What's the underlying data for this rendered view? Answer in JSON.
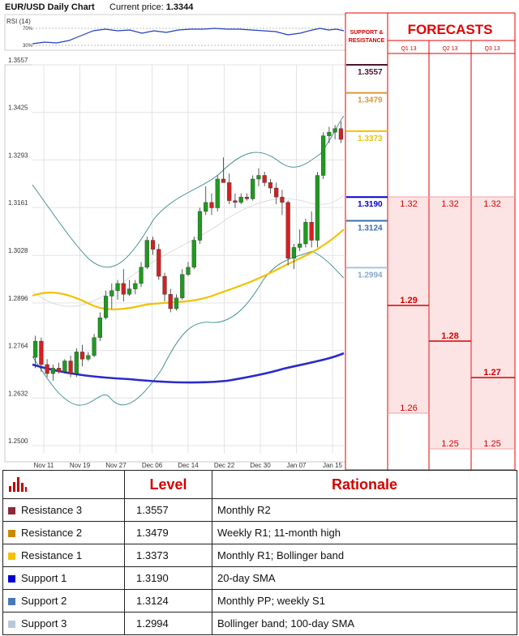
{
  "header": {
    "chart_title": "EUR/USD Daily Chart",
    "price_label": "Current price:",
    "price_value": "1.3344"
  },
  "rsi": {
    "label": "RSI (14)",
    "tick_70": "70%",
    "tick_30": "30%"
  },
  "panel": {
    "sr_title_line1": "SUPPORT &",
    "sr_title_line2": "RESISTANCE",
    "forecast_title": "FORECASTS",
    "quarters": [
      "Q1 13",
      "Q2 13",
      "Q3 13"
    ]
  },
  "levels": [
    {
      "value": "1.3557",
      "color": "#4a1530"
    },
    {
      "value": "1.3479",
      "color": "#d99a3a"
    },
    {
      "value": "1.3373",
      "color": "#f2c200"
    },
    {
      "value": "1.3190",
      "color": "#0000cc"
    },
    {
      "value": "1.3124",
      "color": "#3b6fae"
    },
    {
      "value": "1.2994",
      "color": "#a9c4de"
    }
  ],
  "forecasts": [
    {
      "quarter": "Q1 13",
      "high": "1.32",
      "mid": "1.29",
      "low": "1.26"
    },
    {
      "quarter": "Q2 13",
      "high": "1.32",
      "mid": "1.28",
      "low": "1.25"
    },
    {
      "quarter": "Q3 13",
      "high": "1.32",
      "mid": "1.27",
      "low": "1.25"
    }
  ],
  "table": {
    "header_level": "Level",
    "header_rationale": "Rationale",
    "rows": [
      {
        "name": "Resistance 3",
        "level": "1.3557",
        "rationale": "Monthly R2",
        "color": "#8b2a3a"
      },
      {
        "name": "Resistance 2",
        "level": "1.3479",
        "rationale": "Weekly R1; 11-month high",
        "color": "#c98a00"
      },
      {
        "name": "Resistance 1",
        "level": "1.3373",
        "rationale": "Monthly R1; Bollinger band",
        "color": "#f2c200"
      },
      {
        "name": "Support 1",
        "level": "1.3190",
        "rationale": "20-day SMA",
        "color": "#0000cc"
      },
      {
        "name": "Support 2",
        "level": "1.3124",
        "rationale": "Monthly PP; weekly S1",
        "color": "#4a78b4"
      },
      {
        "name": "Support 3",
        "level": "1.2994",
        "rationale": "Bollinger band; 100-day SMA",
        "color": "#b8c9dc"
      }
    ]
  },
  "chart_data": {
    "type": "candlestick",
    "y_ticks": [
      "1.3557",
      "1.3425",
      "1.3293",
      "1.3161",
      "1.3028",
      "1.2896",
      "1.2764",
      "1.2632",
      "1.2500"
    ],
    "ylim": [
      1.25,
      1.3557
    ],
    "x_ticks": [
      "Nov 11",
      "Nov 19",
      "Nov 27",
      "Dec 06",
      "Dec 14",
      "Dec 22",
      "Dec 30",
      "Jan 07",
      "Jan 15"
    ],
    "grid": true,
    "candles": [
      {
        "o": 1.2745,
        "h": 1.2805,
        "l": 1.2715,
        "c": 1.279
      },
      {
        "o": 1.279,
        "h": 1.28,
        "l": 1.2705,
        "c": 1.2725
      },
      {
        "o": 1.2725,
        "h": 1.274,
        "l": 1.269,
        "c": 1.27
      },
      {
        "o": 1.27,
        "h": 1.2725,
        "l": 1.268,
        "c": 1.2715
      },
      {
        "o": 1.2715,
        "h": 1.273,
        "l": 1.27,
        "c": 1.2705
      },
      {
        "o": 1.2705,
        "h": 1.274,
        "l": 1.27,
        "c": 1.2735
      },
      {
        "o": 1.2735,
        "h": 1.275,
        "l": 1.269,
        "c": 1.27
      },
      {
        "o": 1.27,
        "h": 1.277,
        "l": 1.269,
        "c": 1.276
      },
      {
        "o": 1.276,
        "h": 1.278,
        "l": 1.272,
        "c": 1.274
      },
      {
        "o": 1.274,
        "h": 1.276,
        "l": 1.2735,
        "c": 1.275
      },
      {
        "o": 1.275,
        "h": 1.281,
        "l": 1.2745,
        "c": 1.28
      },
      {
        "o": 1.28,
        "h": 1.287,
        "l": 1.279,
        "c": 1.2855
      },
      {
        "o": 1.2855,
        "h": 1.293,
        "l": 1.285,
        "c": 1.2915
      },
      {
        "o": 1.2915,
        "h": 1.295,
        "l": 1.288,
        "c": 1.293
      },
      {
        "o": 1.293,
        "h": 1.296,
        "l": 1.2905,
        "c": 1.295
      },
      {
        "o": 1.295,
        "h": 1.299,
        "l": 1.29,
        "c": 1.292
      },
      {
        "o": 1.292,
        "h": 1.296,
        "l": 1.2915,
        "c": 1.2935
      },
      {
        "o": 1.2935,
        "h": 1.296,
        "l": 1.292,
        "c": 1.295
      },
      {
        "o": 1.295,
        "h": 1.301,
        "l": 1.294,
        "c": 1.2995
      },
      {
        "o": 1.2995,
        "h": 1.308,
        "l": 1.299,
        "c": 1.307
      },
      {
        "o": 1.307,
        "h": 1.308,
        "l": 1.303,
        "c": 1.3045
      },
      {
        "o": 1.3045,
        "h": 1.306,
        "l": 1.296,
        "c": 1.297
      },
      {
        "o": 1.297,
        "h": 1.298,
        "l": 1.29,
        "c": 1.292
      },
      {
        "o": 1.292,
        "h": 1.2935,
        "l": 1.287,
        "c": 1.288
      },
      {
        "o": 1.288,
        "h": 1.292,
        "l": 1.2875,
        "c": 1.291
      },
      {
        "o": 1.291,
        "h": 1.299,
        "l": 1.2905,
        "c": 1.2975
      },
      {
        "o": 1.2975,
        "h": 1.301,
        "l": 1.297,
        "c": 1.2995
      },
      {
        "o": 1.2995,
        "h": 1.308,
        "l": 1.299,
        "c": 1.307
      },
      {
        "o": 1.307,
        "h": 1.316,
        "l": 1.306,
        "c": 1.315
      },
      {
        "o": 1.315,
        "h": 1.322,
        "l": 1.314,
        "c": 1.3175
      },
      {
        "o": 1.3175,
        "h": 1.32,
        "l": 1.314,
        "c": 1.316
      },
      {
        "o": 1.316,
        "h": 1.325,
        "l": 1.315,
        "c": 1.324
      },
      {
        "o": 1.324,
        "h": 1.33,
        "l": 1.323,
        "c": 1.323
      },
      {
        "o": 1.323,
        "h": 1.3255,
        "l": 1.317,
        "c": 1.318
      },
      {
        "o": 1.318,
        "h": 1.32,
        "l": 1.316,
        "c": 1.3175
      },
      {
        "o": 1.3175,
        "h": 1.32,
        "l": 1.317,
        "c": 1.319
      },
      {
        "o": 1.319,
        "h": 1.32,
        "l": 1.318,
        "c": 1.3185
      },
      {
        "o": 1.3185,
        "h": 1.325,
        "l": 1.318,
        "c": 1.324
      },
      {
        "o": 1.324,
        "h": 1.327,
        "l": 1.322,
        "c": 1.325
      },
      {
        "o": 1.325,
        "h": 1.326,
        "l": 1.322,
        "c": 1.323
      },
      {
        "o": 1.323,
        "h": 1.324,
        "l": 1.32,
        "c": 1.3215
      },
      {
        "o": 1.3215,
        "h": 1.323,
        "l": 1.317,
        "c": 1.319
      },
      {
        "o": 1.319,
        "h": 1.321,
        "l": 1.314,
        "c": 1.3175
      },
      {
        "o": 1.3175,
        "h": 1.318,
        "l": 1.3,
        "c": 1.302
      },
      {
        "o": 1.302,
        "h": 1.306,
        "l": 1.299,
        "c": 1.305
      },
      {
        "o": 1.305,
        "h": 1.31,
        "l": 1.304,
        "c": 1.306
      },
      {
        "o": 1.306,
        "h": 1.313,
        "l": 1.305,
        "c": 1.312
      },
      {
        "o": 1.312,
        "h": 1.315,
        "l": 1.305,
        "c": 1.307
      },
      {
        "o": 1.307,
        "h": 1.326,
        "l": 1.305,
        "c": 1.325
      },
      {
        "o": 1.325,
        "h": 1.337,
        "l": 1.324,
        "c": 1.336
      },
      {
        "o": 1.336,
        "h": 1.3385,
        "l": 1.334,
        "c": 1.337
      },
      {
        "o": 1.337,
        "h": 1.339,
        "l": 1.335,
        "c": 1.338
      },
      {
        "o": 1.338,
        "h": 1.34,
        "l": 1.334,
        "c": 1.335
      }
    ]
  }
}
